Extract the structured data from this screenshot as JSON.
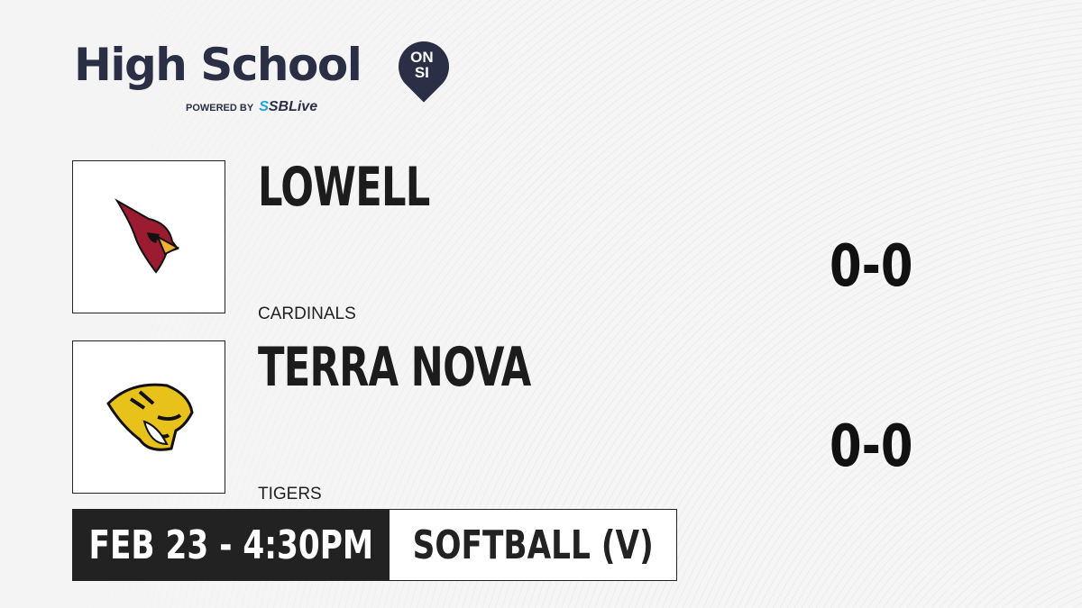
{
  "brand": {
    "title": "High School",
    "badge_top": "ON",
    "badge_bottom": "SI",
    "powered_by": "POWERED BY",
    "partner_prefix": "S",
    "partner": "SBLive",
    "colors": {
      "navy": "#2b2f45",
      "partner_blue": "#1aa3e0"
    }
  },
  "teams": [
    {
      "name": "LOWELL",
      "mascot": "CARDINALS",
      "score": "0-0",
      "logo_icon": "cardinal-head-icon"
    },
    {
      "name": "TERRA NOVA",
      "mascot": "TIGERS",
      "score": "0-0",
      "logo_icon": "tiger-head-icon"
    }
  ],
  "game": {
    "datetime": "FEB 23 - 4:30PM",
    "sport": "SOFTBALL (V)"
  }
}
